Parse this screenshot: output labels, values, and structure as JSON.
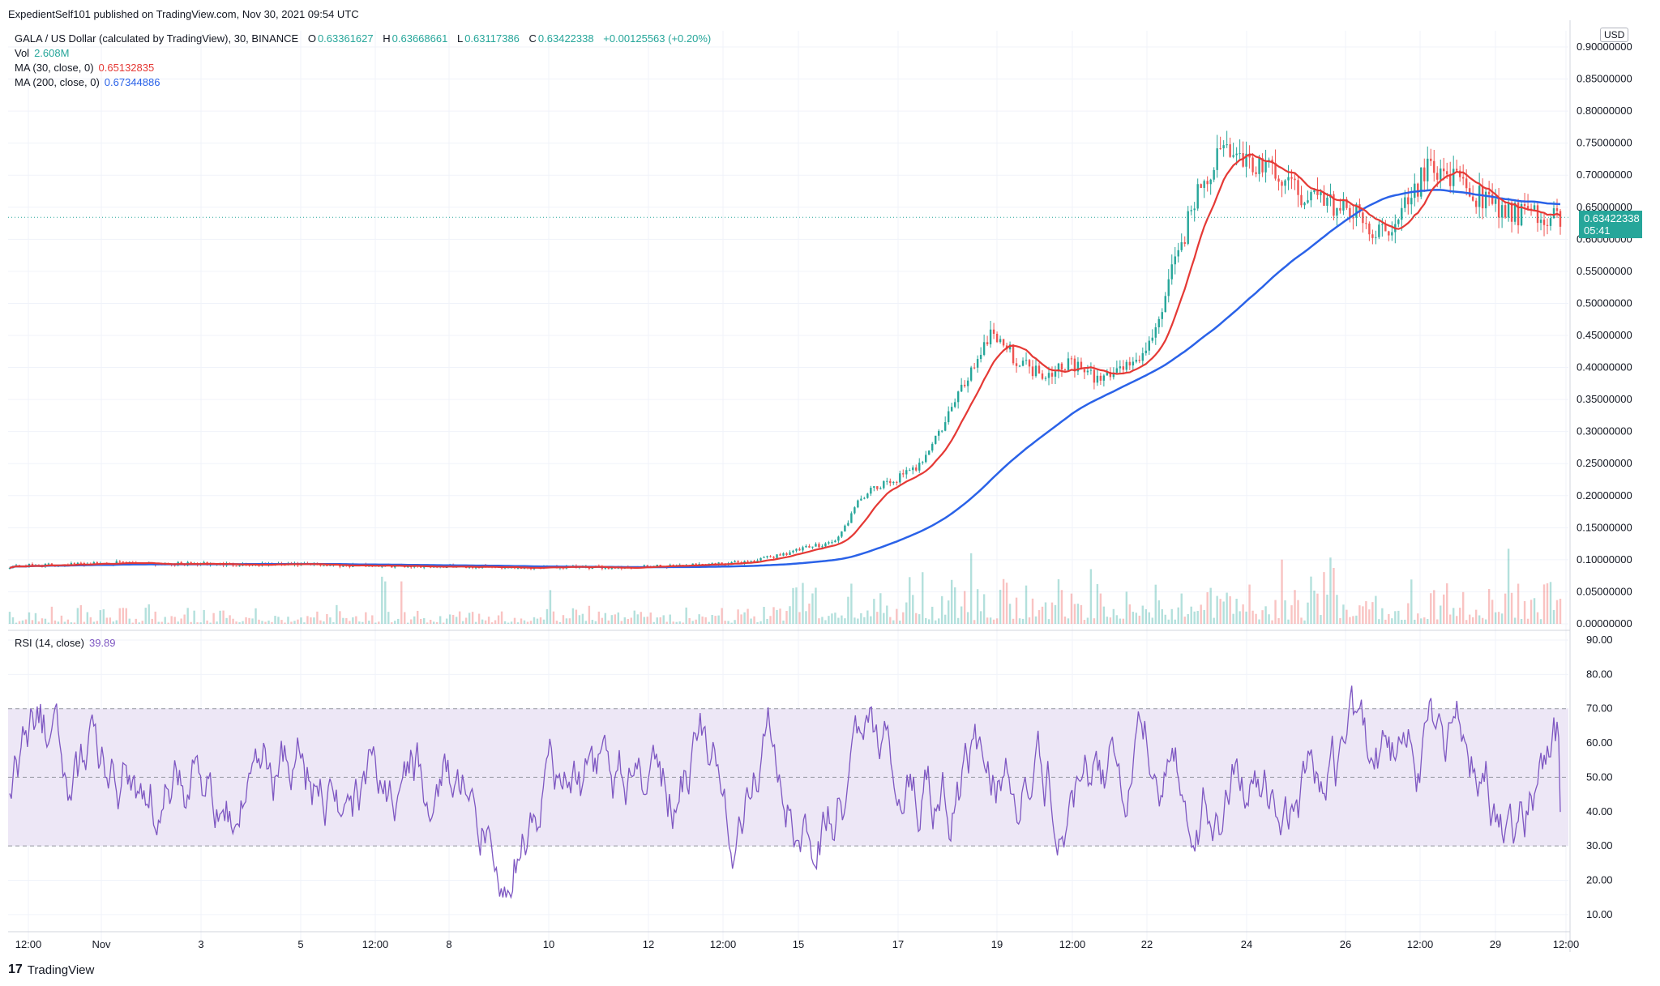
{
  "header": {
    "published": "ExpedientSelf101 published on TradingView.com, Nov 30, 2021 09:54 UTC"
  },
  "legend": {
    "symbol": "GALA / US Dollar (calculated by TradingView), 30, BINANCE",
    "ohlc": {
      "o": "0.63361627",
      "h": "0.63668661",
      "l": "0.63117386",
      "c": "0.63422338",
      "chg": "+0.00125563 (+0.20%)"
    },
    "vol_label": "Vol",
    "vol_value": "2.608M",
    "ma30_label": "MA (30, close, 0)",
    "ma30_value": "0.65132835",
    "ma200_label": "MA (200, close, 0)",
    "ma200_value": "0.67344886",
    "rsi_label": "RSI (14, close)",
    "rsi_value": "39.89"
  },
  "price_badge": {
    "price": "0.63422338",
    "countdown": "05:41"
  },
  "currency": "USD",
  "footer": {
    "brand": "TradingView",
    "logo": "17"
  },
  "colors": {
    "up": "#26a69a",
    "down": "#ef5350",
    "ma30": "#e53935",
    "ma200": "#2a62e8",
    "rsi": "#7e57c2",
    "rsi_band": "#ede7f6",
    "grid": "#f0f3fa"
  },
  "chart_data": [
    {
      "type": "candlestick",
      "title": "GALA / US Dollar, 30, BINANCE",
      "ylim": [
        0,
        0.9
      ],
      "y_ticks": [
        "0.90000000",
        "0.85000000",
        "0.80000000",
        "0.75000000",
        "0.70000000",
        "0.65000000",
        "0.60000000",
        "0.55000000",
        "0.50000000",
        "0.45000000",
        "0.40000000",
        "0.35000000",
        "0.30000000",
        "0.25000000",
        "0.20000000",
        "0.15000000",
        "0.10000000",
        "0.05000000",
        "0.00000000"
      ],
      "x_ticks": [
        "12:00",
        "Nov",
        "3",
        "5",
        "12:00",
        "8",
        "10",
        "12",
        "12:00",
        "15",
        "17",
        "19",
        "12:00",
        "22",
        "24",
        "26",
        "12:00",
        "29",
        "12:00"
      ],
      "last_price": 0.63422338,
      "close_anchor_x": [
        0,
        2,
        4,
        6,
        8,
        10,
        12,
        14,
        14.5,
        15,
        15.5,
        16,
        16.5,
        17,
        17.5,
        18,
        18.5,
        19,
        19.5,
        20,
        20.5,
        21,
        21.5,
        22,
        22.5,
        23,
        23.5,
        24,
        24.5,
        25,
        25.5,
        26,
        26.5,
        27,
        27.5,
        28,
        28.5,
        29,
        29.5,
        30
      ],
      "close_anchor_y": [
        0.09,
        0.095,
        0.093,
        0.092,
        0.09,
        0.088,
        0.088,
        0.095,
        0.1,
        0.11,
        0.12,
        0.13,
        0.2,
        0.22,
        0.24,
        0.3,
        0.38,
        0.46,
        0.41,
        0.39,
        0.41,
        0.38,
        0.4,
        0.42,
        0.55,
        0.68,
        0.74,
        0.72,
        0.7,
        0.67,
        0.66,
        0.64,
        0.61,
        0.65,
        0.72,
        0.69,
        0.66,
        0.64,
        0.635,
        0.634
      ],
      "ma30": {
        "name": "MA (30, close, 0)",
        "last": 0.65132835
      },
      "ma200": {
        "name": "MA (200, close, 0)",
        "last": 0.67344886
      },
      "volume": {
        "name": "Vol",
        "last": "2.608M"
      }
    },
    {
      "type": "line",
      "title": "RSI (14, close)",
      "ylim": [
        5,
        90
      ],
      "y_ticks": [
        "90.00",
        "80.00",
        "70.00",
        "60.00",
        "50.00",
        "40.00",
        "30.00",
        "20.00",
        "10.00"
      ],
      "band": [
        30,
        70
      ],
      "last": 39.89
    }
  ]
}
